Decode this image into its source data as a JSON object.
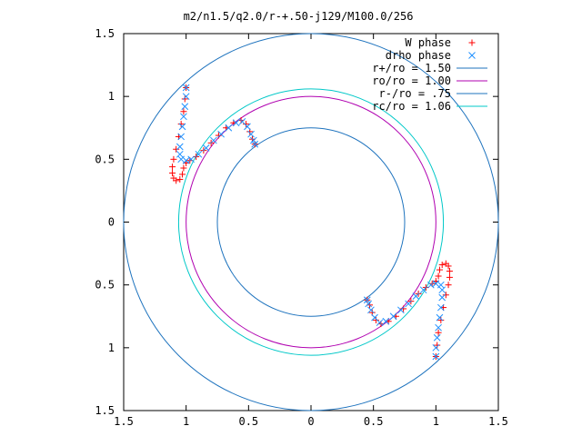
{
  "chart_data": {
    "type": "scatter",
    "title": "m2/n1.5/q2.0/r-+.50-j129/M100.0/256",
    "xlabel": "",
    "ylabel": "",
    "xlim": [
      -1.5,
      1.5
    ],
    "ylim": [
      -1.5,
      1.5
    ],
    "x_tick_values": [
      -1.5,
      -1,
      -0.5,
      0,
      0.5,
      1,
      1.5
    ],
    "x_tick_labels": [
      "1.5",
      "1",
      "0.5",
      "0",
      "0.5",
      "1",
      "1.5"
    ],
    "y_tick_values": [
      1.5,
      1,
      0.5,
      0,
      -0.5,
      -1,
      -1.5
    ],
    "y_tick_labels": [
      "1.5",
      "1",
      "0.5",
      "0",
      "0.5",
      "1",
      "1.5"
    ],
    "grid": false,
    "legend_position": "top-right",
    "circles": [
      {
        "name": "r+/ro = 1.50",
        "radius": 1.5,
        "color": "#1e73be"
      },
      {
        "name": "ro/ro = 1.00",
        "radius": 1.0,
        "color": "#b000b0"
      },
      {
        "name": "r-/ro = .75",
        "radius": 0.75,
        "color": "#1e73be"
      },
      {
        "name": "rc/ro = 1.06",
        "radius": 1.06,
        "color": "#00c8c8"
      }
    ],
    "series": [
      {
        "name": "W phase",
        "marker": "+",
        "color": "#ff0000",
        "points": [
          [
            -1.0,
            1.07
          ],
          [
            -1.01,
            0.98
          ],
          [
            -1.02,
            0.88
          ],
          [
            -1.04,
            0.78
          ],
          [
            -1.06,
            0.68
          ],
          [
            -1.08,
            0.58
          ],
          [
            -1.1,
            0.5
          ],
          [
            -1.11,
            0.44
          ],
          [
            -1.11,
            0.39
          ],
          [
            -1.1,
            0.35
          ],
          [
            -1.08,
            0.33
          ],
          [
            -1.05,
            0.34
          ],
          [
            -1.03,
            0.38
          ],
          [
            -1.02,
            0.43
          ],
          [
            -1.0,
            0.47
          ],
          [
            -0.97,
            0.49
          ],
          [
            -0.92,
            0.52
          ],
          [
            -0.86,
            0.57
          ],
          [
            -0.8,
            0.63
          ],
          [
            -0.74,
            0.69
          ],
          [
            -0.68,
            0.75
          ],
          [
            -0.62,
            0.79
          ],
          [
            -0.56,
            0.81
          ],
          [
            -0.52,
            0.78
          ],
          [
            -0.49,
            0.72
          ],
          [
            -0.47,
            0.66
          ],
          [
            -0.45,
            0.62
          ],
          [
            1.0,
            -1.07
          ],
          [
            1.01,
            -0.98
          ],
          [
            1.02,
            -0.88
          ],
          [
            1.04,
            -0.78
          ],
          [
            1.06,
            -0.68
          ],
          [
            1.08,
            -0.58
          ],
          [
            1.1,
            -0.5
          ],
          [
            1.11,
            -0.44
          ],
          [
            1.11,
            -0.39
          ],
          [
            1.1,
            -0.35
          ],
          [
            1.08,
            -0.33
          ],
          [
            1.05,
            -0.34
          ],
          [
            1.03,
            -0.38
          ],
          [
            1.02,
            -0.43
          ],
          [
            1.0,
            -0.47
          ],
          [
            0.97,
            -0.49
          ],
          [
            0.92,
            -0.52
          ],
          [
            0.86,
            -0.57
          ],
          [
            0.8,
            -0.63
          ],
          [
            0.74,
            -0.69
          ],
          [
            0.68,
            -0.75
          ],
          [
            0.62,
            -0.79
          ],
          [
            0.56,
            -0.81
          ],
          [
            0.52,
            -0.78
          ],
          [
            0.49,
            -0.72
          ],
          [
            0.47,
            -0.66
          ],
          [
            0.45,
            -0.62
          ]
        ]
      },
      {
        "name": "drho phase",
        "marker": "x",
        "color": "#1e90ff",
        "points": [
          [
            -1.0,
            1.07
          ],
          [
            -1.0,
            1.0
          ],
          [
            -1.01,
            0.92
          ],
          [
            -1.02,
            0.84
          ],
          [
            -1.03,
            0.76
          ],
          [
            -1.04,
            0.68
          ],
          [
            -1.05,
            0.6
          ],
          [
            -1.05,
            0.54
          ],
          [
            -1.04,
            0.5
          ],
          [
            -1.0,
            0.49
          ],
          [
            -0.96,
            0.5
          ],
          [
            -0.9,
            0.54
          ],
          [
            -0.84,
            0.59
          ],
          [
            -0.78,
            0.65
          ],
          [
            -0.72,
            0.7
          ],
          [
            -0.66,
            0.75
          ],
          [
            -0.6,
            0.79
          ],
          [
            -0.55,
            0.8
          ],
          [
            -0.51,
            0.76
          ],
          [
            -0.48,
            0.7
          ],
          [
            -0.46,
            0.65
          ],
          [
            -0.45,
            0.62
          ],
          [
            1.0,
            -1.07
          ],
          [
            1.0,
            -1.0
          ],
          [
            1.01,
            -0.92
          ],
          [
            1.02,
            -0.84
          ],
          [
            1.03,
            -0.76
          ],
          [
            1.04,
            -0.68
          ],
          [
            1.05,
            -0.6
          ],
          [
            1.05,
            -0.54
          ],
          [
            1.04,
            -0.5
          ],
          [
            1.0,
            -0.49
          ],
          [
            0.96,
            -0.5
          ],
          [
            0.9,
            -0.54
          ],
          [
            0.84,
            -0.59
          ],
          [
            0.78,
            -0.65
          ],
          [
            0.72,
            -0.7
          ],
          [
            0.66,
            -0.75
          ],
          [
            0.6,
            -0.79
          ],
          [
            0.55,
            -0.8
          ],
          [
            0.51,
            -0.76
          ],
          [
            0.48,
            -0.7
          ],
          [
            0.46,
            -0.65
          ],
          [
            0.45,
            -0.62
          ]
        ]
      }
    ]
  }
}
